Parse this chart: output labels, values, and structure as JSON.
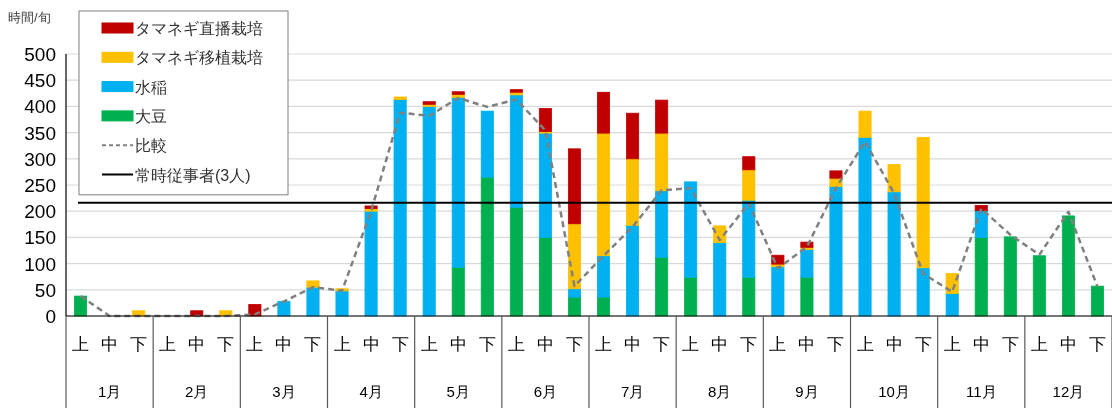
{
  "chart_data": {
    "type": "bar",
    "stacked": true,
    "ylabel": "時間/旬",
    "categories": [
      "上",
      "中",
      "下",
      "上",
      "中",
      "下",
      "上",
      "中",
      "下",
      "上",
      "中",
      "下",
      "上",
      "中",
      "下",
      "上",
      "中",
      "下",
      "上",
      "中",
      "下",
      "上",
      "中",
      "下",
      "上",
      "中",
      "下",
      "上",
      "中",
      "下",
      "上",
      "中",
      "下",
      "上",
      "中",
      "下"
    ],
    "annotations": [
      "1月",
      "2月",
      "3月",
      "4月",
      "5月",
      "6月",
      "7月",
      "8月",
      "9月",
      "10月",
      "11月",
      "12月"
    ],
    "series": [
      {
        "name": "大豆",
        "color": "#00b050",
        "values": [
          38,
          null,
          null,
          null,
          null,
          null,
          null,
          null,
          null,
          null,
          null,
          null,
          null,
          93,
          265,
          207,
          150,
          36,
          36,
          null,
          112,
          74,
          null,
          74,
          null,
          74,
          null,
          null,
          null,
          null,
          null,
          150,
          151,
          115,
          191,
          57
        ]
      },
      {
        "name": "水稲",
        "color": "#00b0f0",
        "values": [
          null,
          null,
          null,
          null,
          null,
          null,
          null,
          28,
          55,
          48,
          200,
          413,
          400,
          324,
          126,
          215,
          199,
          16,
          79,
          173,
          127,
          182,
          140,
          147,
          94,
          53,
          247,
          341,
          237,
          92,
          43,
          51,
          null,
          null,
          null,
          null
        ]
      },
      {
        "name": "タマネギ移植栽培",
        "color": "#ffc000",
        "values": [
          null,
          null,
          10,
          null,
          null,
          10,
          null,
          null,
          12,
          4,
          5,
          5,
          4,
          6,
          null,
          5,
          3,
          124,
          234,
          127,
          110,
          null,
          32,
          58,
          5,
          4,
          16,
          50,
          52,
          249,
          38,
          null,
          null,
          null,
          null,
          null
        ]
      },
      {
        "name": "タマネギ直播栽培",
        "color": "#c00000",
        "values": [
          null,
          null,
          null,
          null,
          10,
          null,
          22,
          null,
          null,
          null,
          5,
          null,
          5,
          5,
          null,
          5,
          44,
          143,
          78,
          87,
          63,
          null,
          null,
          25,
          17,
          10,
          14,
          null,
          null,
          null,
          null,
          10,
          null,
          null,
          null,
          null
        ]
      },
      {
        "name": "比較",
        "type": "line",
        "color": "#808080",
        "line_style": "dashed",
        "marker": "none",
        "values": [
          38,
          0,
          0,
          0,
          0,
          0,
          3,
          28,
          55,
          48,
          200,
          388,
          382,
          416,
          399,
          413,
          354,
          57,
          115,
          170,
          240,
          244,
          145,
          215,
          91,
          132,
          244,
          333,
          234,
          81,
          46,
          205,
          155,
          117,
          199,
          56
        ]
      }
    ],
    "ref_lines": [
      {
        "axis": "y",
        "value": 216,
        "label": "常時従事者(3人)",
        "color": "#000000",
        "line_style": "solid"
      }
    ],
    "ylim": [
      0,
      500
    ],
    "yticks": [
      0,
      50,
      100,
      150,
      200,
      250,
      300,
      350,
      400,
      450,
      500
    ],
    "grid": "y",
    "legend": "top left"
  }
}
